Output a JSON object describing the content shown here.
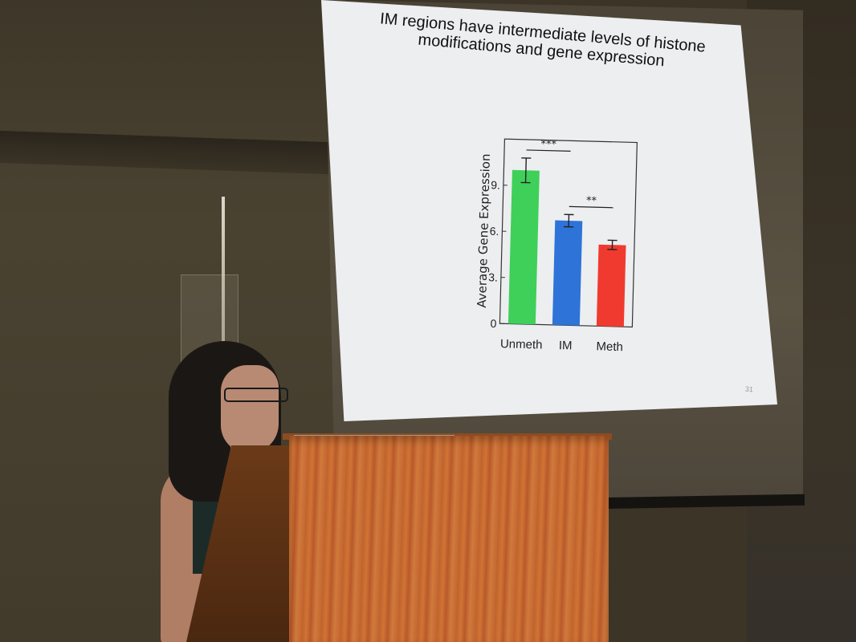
{
  "slide": {
    "title_line1": "IM regions have intermediate levels of histone",
    "title_line2": "modifications and gene expression",
    "page_number": "31"
  },
  "chart_data": {
    "type": "bar",
    "ylabel": "Average Gene Expression",
    "xlabel": "",
    "categories": [
      "Unmeth",
      "IM",
      "Meth"
    ],
    "values": [
      10.0,
      6.8,
      5.3
    ],
    "errors": [
      0.8,
      0.4,
      0.3
    ],
    "colors": [
      "#3fd05a",
      "#2e73d8",
      "#f03a30"
    ],
    "ylim": [
      0,
      12
    ],
    "yticks": [
      "0",
      "3.",
      "6.",
      "9."
    ],
    "ytick_values": [
      0,
      3,
      6,
      9
    ],
    "significance": [
      {
        "label": "***",
        "between": [
          "Unmeth",
          "IM"
        ]
      },
      {
        "label": "**",
        "between": [
          "IM",
          "Meth"
        ]
      }
    ],
    "grid": false
  }
}
